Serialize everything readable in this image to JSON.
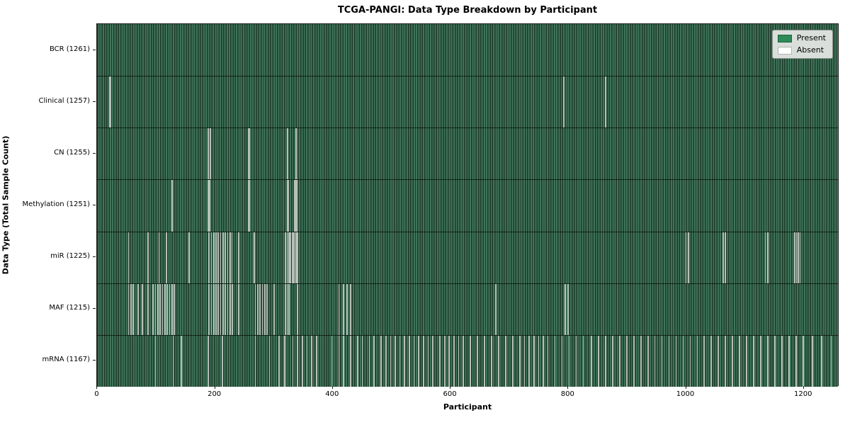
{
  "title": "TCGA-PANGI: Data Type Breakdown by Participant",
  "x_axis_label": "Participant",
  "y_axis_label": "Data Type (Total Sample Count)",
  "legend": {
    "present_label": "Present",
    "absent_label": "Absent",
    "present_color": "#2e8b57",
    "absent_color": "#ffffff"
  },
  "colors": {
    "bar_present": "#2e8b57",
    "bar_edge": "#1d3a29",
    "bar_absent_streak": "#b7c0b8",
    "plot_border": "#1b1b1b",
    "figure_background": "#ffffff",
    "legend_background": "#e3e6e3"
  },
  "chart_data": {
    "type": "heatmap",
    "title": "TCGA-PANGI: Data Type Breakdown by Participant",
    "xlabel": "Participant",
    "ylabel": "Data Type (Total Sample Count)",
    "total_participants": 1261,
    "xlim": [
      -0.5,
      1260.5
    ],
    "x_ticks": [
      0,
      200,
      400,
      600,
      800,
      1000,
      1200
    ],
    "grid": false,
    "legend_position": "upper right",
    "legend_entries": [
      {
        "label": "Present",
        "color": "#2e8b57"
      },
      {
        "label": "Absent",
        "color": "#ffffff"
      }
    ],
    "rows": [
      {
        "label": "BCR (1261)",
        "data_type": "BCR",
        "total_sample_count": 1261,
        "present_count": 1261,
        "absent_count": 0,
        "absent_positions": []
      },
      {
        "label": "Clinical (1257)",
        "data_type": "Clinical",
        "total_sample_count": 1257,
        "present_count": 1257,
        "absent_count": 4,
        "absent_positions": [
          20,
          22,
          793,
          864
        ]
      },
      {
        "label": "CN (1255)",
        "data_type": "CN",
        "total_sample_count": 1255,
        "present_count": 1255,
        "absent_count": 6,
        "absent_positions": [
          188,
          191,
          256,
          258,
          323,
          337
        ]
      },
      {
        "label": "Methylation (1251)",
        "data_type": "Methylation",
        "total_sample_count": 1251,
        "present_count": 1251,
        "absent_count": 10,
        "absent_positions": [
          126,
          188,
          190,
          256,
          258,
          322,
          324,
          335,
          337,
          339
        ]
      },
      {
        "label": "miR (1225)",
        "data_type": "miR",
        "total_sample_count": 1225,
        "present_count": 1225,
        "absent_count": 36,
        "absent_positions": [
          52,
          85,
          104,
          117,
          155,
          189,
          193,
          197,
          201,
          205,
          209,
          213,
          217,
          221,
          225,
          228,
          240,
          266,
          319,
          322,
          325,
          328,
          331,
          334,
          337,
          340,
          1001,
          1005,
          1064,
          1068,
          1136,
          1140,
          1186,
          1189,
          1192,
          1195
        ]
      },
      {
        "label": "MAF (1215)",
        "data_type": "MAF",
        "total_sample_count": 1215,
        "present_count": 1215,
        "absent_count": 46,
        "absent_positions": [
          52,
          56,
          60,
          68,
          76,
          85,
          94,
          98,
          102,
          106,
          110,
          114,
          118,
          122,
          126,
          130,
          189,
          193,
          197,
          201,
          205,
          209,
          213,
          217,
          221,
          225,
          229,
          240,
          268,
          272,
          276,
          280,
          284,
          288,
          300,
          319,
          322,
          325,
          340,
          410,
          418,
          424,
          430,
          677,
          795,
          800
        ]
      },
      {
        "label": "mRNA (1167)",
        "data_type": "mRNA",
        "total_sample_count": 1167,
        "present_count": 1167,
        "absent_count": 94,
        "absent_positions": [
          98,
          128,
          142,
          188,
          212,
          268,
          292,
          308,
          318,
          332,
          340,
          348,
          356,
          364,
          372,
          398,
          410,
          418,
          430,
          442,
          450,
          462,
          470,
          482,
          490,
          498,
          506,
          514,
          522,
          530,
          538,
          546,
          554,
          562,
          570,
          582,
          590,
          598,
          606,
          614,
          622,
          634,
          646,
          658,
          670,
          682,
          694,
          706,
          718,
          726,
          734,
          742,
          750,
          758,
          766,
          778,
          790,
          802,
          814,
          826,
          840,
          852,
          864,
          876,
          888,
          900,
          912,
          924,
          936,
          948,
          960,
          972,
          984,
          996,
          1008,
          1020,
          1032,
          1044,
          1056,
          1068,
          1080,
          1092,
          1104,
          1116,
          1128,
          1140,
          1152,
          1164,
          1176,
          1188,
          1200,
          1216,
          1232,
          1248
        ]
      }
    ]
  }
}
